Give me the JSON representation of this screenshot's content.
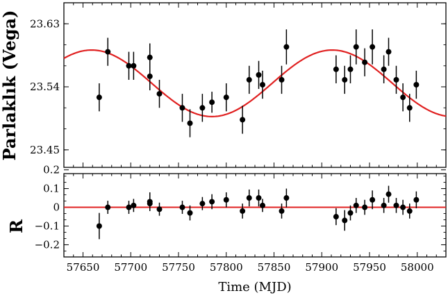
{
  "chart_data": [
    {
      "type": "scatter",
      "panel": "top",
      "ylabel": "Parlaklık (Vega)",
      "xlim": [
        57630,
        58030
      ],
      "ylim": [
        23.66,
        23.425
      ],
      "y_inverted": true,
      "xticks": [
        57650,
        57700,
        57750,
        57800,
        57850,
        57900,
        57950,
        58000
      ],
      "yticks": [
        23.45,
        23.54,
        23.63
      ],
      "ytick_labels": [
        "23.45",
        "23.54",
        "23.63"
      ],
      "point_color": "#000000",
      "series": [
        {
          "name": "",
          "points": [
            {
              "x": 57667,
              "y": 23.525,
              "err": 0.02
            },
            {
              "x": 57676,
              "y": 23.59,
              "err": 0.02
            },
            {
              "x": 57698,
              "y": 23.57,
              "err": 0.02
            },
            {
              "x": 57703,
              "y": 23.57,
              "err": 0.02
            },
            {
              "x": 57720,
              "y": 23.555,
              "err": 0.02
            },
            {
              "x": 57720,
              "y": 23.582,
              "err": 0.02
            },
            {
              "x": 57730,
              "y": 23.53,
              "err": 0.02
            },
            {
              "x": 57754,
              "y": 23.51,
              "err": 0.02
            },
            {
              "x": 57762,
              "y": 23.488,
              "err": 0.02
            },
            {
              "x": 57775,
              "y": 23.51,
              "err": 0.02
            },
            {
              "x": 57785,
              "y": 23.518,
              "err": 0.015
            },
            {
              "x": 57800,
              "y": 23.525,
              "err": 0.02
            },
            {
              "x": 57817,
              "y": 23.493,
              "err": 0.02
            },
            {
              "x": 57824,
              "y": 23.55,
              "err": 0.02
            },
            {
              "x": 57834,
              "y": 23.557,
              "err": 0.02
            },
            {
              "x": 57838,
              "y": 23.543,
              "err": 0.02
            },
            {
              "x": 57858,
              "y": 23.55,
              "err": 0.02
            },
            {
              "x": 57863,
              "y": 23.597,
              "err": 0.025
            },
            {
              "x": 57915,
              "y": 23.565,
              "err": 0.02
            },
            {
              "x": 57924,
              "y": 23.55,
              "err": 0.02
            },
            {
              "x": 57930,
              "y": 23.565,
              "err": 0.02
            },
            {
              "x": 57936,
              "y": 23.597,
              "err": 0.025
            },
            {
              "x": 57945,
              "y": 23.575,
              "err": 0.02
            },
            {
              "x": 57953,
              "y": 23.597,
              "err": 0.025
            },
            {
              "x": 57965,
              "y": 23.565,
              "err": 0.02
            },
            {
              "x": 57970,
              "y": 23.59,
              "err": 0.02
            },
            {
              "x": 57978,
              "y": 23.55,
              "err": 0.02
            },
            {
              "x": 57985,
              "y": 23.525,
              "err": 0.02
            },
            {
              "x": 57992,
              "y": 23.51,
              "err": 0.02
            },
            {
              "x": 57999,
              "y": 23.543,
              "err": 0.02
            }
          ]
        }
      ],
      "model_curve": {
        "color": "#e02020",
        "form": "sinusoid",
        "mean": 23.545,
        "amplitude": 0.0475,
        "period": 252,
        "peak_x": 57785
      }
    },
    {
      "type": "scatter",
      "panel": "bottom",
      "ylabel": "R",
      "xlabel": "Time (MJD)",
      "xlim": [
        57630,
        58030
      ],
      "ylim": [
        0.18,
        -0.265
      ],
      "y_inverted": true,
      "xticks": [
        57650,
        57700,
        57750,
        57800,
        57850,
        57900,
        57950,
        58000
      ],
      "yticks": [
        -0.2,
        -0.1,
        0,
        0.1,
        0.2
      ],
      "ytick_labels": [
        "−0.2",
        "−0.1",
        "0",
        "0.1",
        "0.2"
      ],
      "zero_line_color": "#e02020",
      "point_color": "#000000",
      "series": [
        {
          "name": "",
          "points": [
            {
              "x": 57667,
              "y": -0.1,
              "err": 0.07
            },
            {
              "x": 57676,
              "y": 0.0,
              "err": 0.035
            },
            {
              "x": 57698,
              "y": 0.0,
              "err": 0.035
            },
            {
              "x": 57703,
              "y": 0.01,
              "err": 0.035
            },
            {
              "x": 57720,
              "y": 0.02,
              "err": 0.035
            },
            {
              "x": 57720,
              "y": 0.03,
              "err": 0.05
            },
            {
              "x": 57730,
              "y": -0.01,
              "err": 0.035
            },
            {
              "x": 57754,
              "y": 0.0,
              "err": 0.035
            },
            {
              "x": 57762,
              "y": -0.03,
              "err": 0.04
            },
            {
              "x": 57775,
              "y": 0.02,
              "err": 0.035
            },
            {
              "x": 57785,
              "y": 0.03,
              "err": 0.04
            },
            {
              "x": 57800,
              "y": 0.04,
              "err": 0.04
            },
            {
              "x": 57817,
              "y": -0.02,
              "err": 0.04
            },
            {
              "x": 57824,
              "y": 0.05,
              "err": 0.045
            },
            {
              "x": 57834,
              "y": 0.05,
              "err": 0.045
            },
            {
              "x": 57838,
              "y": 0.01,
              "err": 0.035
            },
            {
              "x": 57858,
              "y": -0.02,
              "err": 0.04
            },
            {
              "x": 57863,
              "y": 0.05,
              "err": 0.05
            },
            {
              "x": 57915,
              "y": -0.05,
              "err": 0.045
            },
            {
              "x": 57924,
              "y": -0.07,
              "err": 0.055
            },
            {
              "x": 57930,
              "y": -0.03,
              "err": 0.04
            },
            {
              "x": 57936,
              "y": 0.01,
              "err": 0.04
            },
            {
              "x": 57945,
              "y": 0.0,
              "err": 0.04
            },
            {
              "x": 57953,
              "y": 0.04,
              "err": 0.05
            },
            {
              "x": 57965,
              "y": 0.01,
              "err": 0.04
            },
            {
              "x": 57970,
              "y": 0.07,
              "err": 0.045
            },
            {
              "x": 57978,
              "y": 0.01,
              "err": 0.04
            },
            {
              "x": 57985,
              "y": 0.0,
              "err": 0.04
            },
            {
              "x": 57992,
              "y": -0.02,
              "err": 0.04
            },
            {
              "x": 57999,
              "y": 0.04,
              "err": 0.045
            }
          ]
        }
      ]
    }
  ]
}
